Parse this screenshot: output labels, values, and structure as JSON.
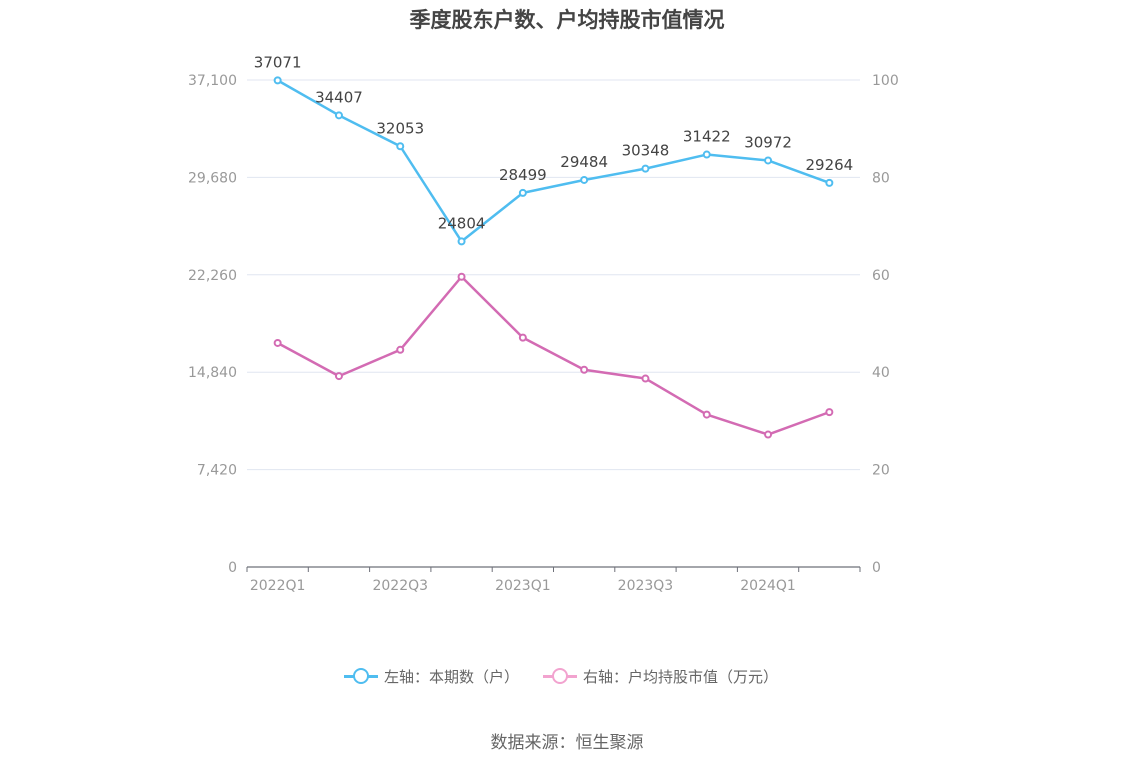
{
  "chart_data": {
    "type": "line",
    "title": "季度股东户数、户均持股市值情况",
    "categories": [
      "2022Q1",
      "2022Q2",
      "2022Q3",
      "2022Q4",
      "2023Q1",
      "2023Q2",
      "2023Q3",
      "2023Q4",
      "2024Q1",
      "2024Q2"
    ],
    "x_tick_labels": [
      "2022Q1",
      "2022Q3",
      "2023Q1",
      "2023Q3",
      "2024Q1"
    ],
    "left_axis": {
      "ylim": [
        0,
        37100
      ],
      "ticks": [
        "0",
        "7,420",
        "14,840",
        "22,260",
        "29,680",
        "37,100"
      ]
    },
    "right_axis": {
      "ylim": [
        0,
        100
      ],
      "ticks": [
        "0",
        "20",
        "40",
        "60",
        "80",
        "100"
      ]
    },
    "grid": true,
    "legend_position": "bottom",
    "series": [
      {
        "name": "左轴：本期数（户）",
        "axis": "left",
        "color": "#4fbdf0",
        "values": [
          37071,
          34407,
          32053,
          24804,
          28499,
          29484,
          30348,
          31422,
          30972,
          29264
        ],
        "labels": [
          "37071",
          "34407",
          "32053",
          "24804",
          "28499",
          "29484",
          "30348",
          "31422",
          "30972",
          "29264"
        ]
      },
      {
        "name": "右轴：户均持股市值（万元）",
        "axis": "right",
        "color": "#d36bb3",
        "values": [
          46.0,
          39.2,
          44.6,
          59.6,
          47.1,
          40.5,
          38.7,
          31.3,
          27.2,
          31.8
        ]
      }
    ]
  },
  "legend": {
    "left_label": "左轴：本期数（户）",
    "right_label": "右轴：户均持股市值（万元）",
    "left_color": "#4fbdf0",
    "right_color": "#f2a3cf"
  },
  "source": "数据来源：恒生聚源"
}
